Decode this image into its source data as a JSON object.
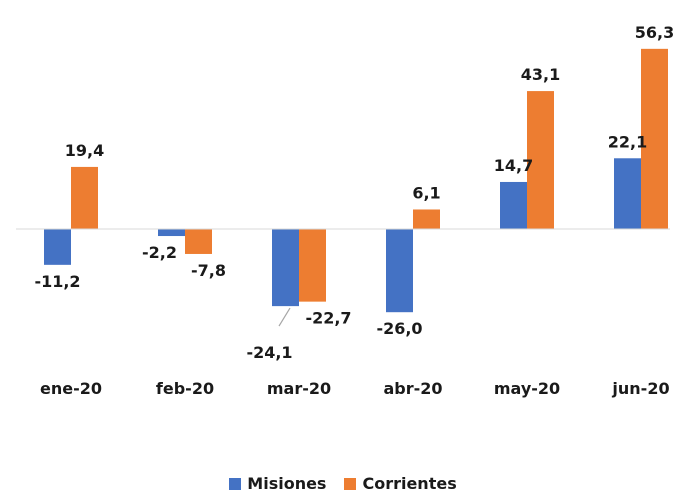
{
  "chart_data": {
    "type": "bar",
    "categories": [
      "ene-20",
      "feb-20",
      "mar-20",
      "abr-20",
      "may-20",
      "jun-20"
    ],
    "series": [
      {
        "name": "Misiones",
        "color": "#4472C4",
        "values": [
          -11.2,
          -2.2,
          -24.1,
          -26.0,
          14.7,
          22.1
        ],
        "labels": [
          "-11,2",
          "-2,2",
          "-24,1",
          "-26,0",
          "14,7",
          "22,1"
        ]
      },
      {
        "name": "Corrientes",
        "color": "#ED7D31",
        "values": [
          19.4,
          -7.8,
          -22.7,
          6.1,
          43.1,
          56.3
        ],
        "labels": [
          "19,4",
          "-7,8",
          "-22,7",
          "6,1",
          "43,1",
          "56,3"
        ]
      }
    ],
    "title": "",
    "xlabel": "",
    "ylabel": "",
    "ylim": [
      -30,
      60
    ],
    "grid": false,
    "legend_position": "bottom"
  }
}
